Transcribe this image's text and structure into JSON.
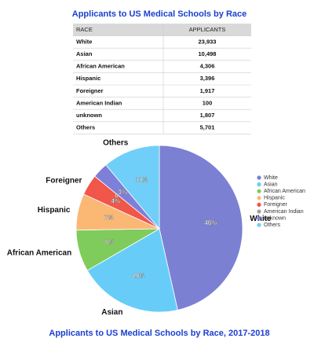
{
  "title": "Applicants to US Medical Schools by Race",
  "table": {
    "header": [
      "RACE",
      "APPLICANTS"
    ],
    "rows": [
      [
        "White",
        "23,933"
      ],
      [
        "Asian",
        "10,498"
      ],
      [
        "African American",
        "4,306"
      ],
      [
        "Hispanic",
        "3,396"
      ],
      [
        "Foreigner",
        "1,917"
      ],
      [
        "American Indian",
        "100"
      ],
      [
        "unknown",
        "1,807"
      ],
      [
        "Others",
        "5,701"
      ]
    ]
  },
  "chart_data": {
    "type": "pie",
    "title": "Applicants to US Medical Schools by Race, 2017-2018",
    "categories": [
      "White",
      "Asian",
      "African American",
      "Hispanic",
      "Foreigner",
      "American Indian",
      "unknown",
      "Others"
    ],
    "values": [
      46,
      20,
      8,
      7,
      4,
      0,
      3,
      11
    ],
    "value_labels": [
      "46%",
      "20%",
      "8%",
      "7%",
      "4%",
      "0%",
      "3%",
      "11%"
    ],
    "outer_labels": [
      "White",
      "Asian",
      "African American",
      "Hispanic",
      "Foreigner",
      null,
      null,
      "Others"
    ],
    "colors": [
      "#7b80d2",
      "#67cdf8",
      "#7fcb5c",
      "#fbb774",
      "#f1564a",
      "#a0a0a0",
      "#7e7fd8",
      "#6fcff8"
    ],
    "legend": "right"
  }
}
